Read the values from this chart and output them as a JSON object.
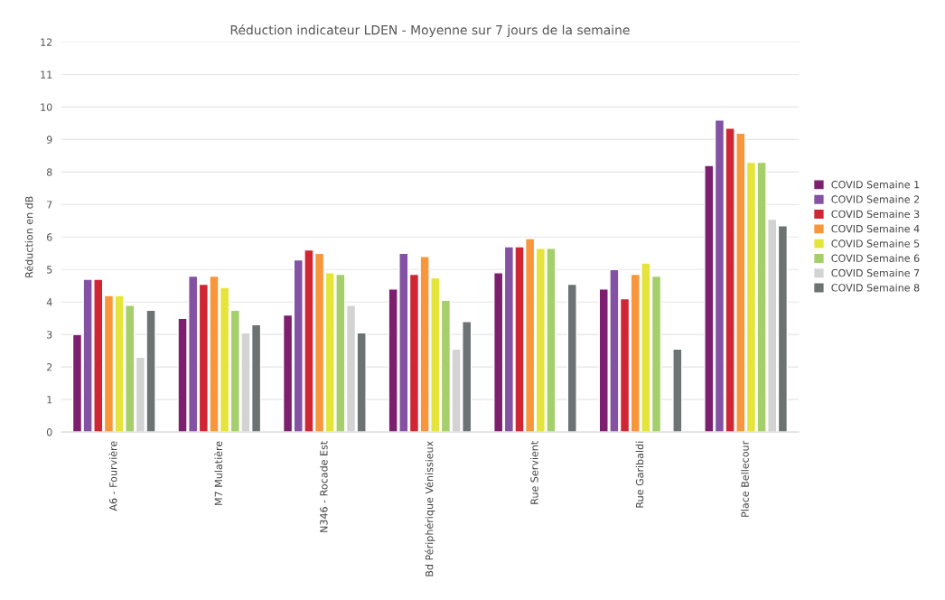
{
  "chart_data": {
    "type": "bar",
    "title": "Réduction indicateur LDEN - Moyenne sur 7 jours de la semaine",
    "ylabel": "Réduction en dB",
    "categories": [
      "A6 - Fourvière",
      "M7 Mulatière",
      "N346 - Rocade Est",
      "Bd Périphérique Vénissieux",
      "Rue Servient",
      "Rue Garibaldi",
      "Place Bellecour"
    ],
    "series": [
      {
        "name": "COVID Semaine 1",
        "color": "#7b1f6e",
        "values": [
          3.0,
          3.5,
          3.6,
          4.4,
          4.9,
          4.4,
          8.2
        ]
      },
      {
        "name": "COVID Semaine 2",
        "color": "#8352a3",
        "values": [
          4.7,
          4.8,
          5.3,
          5.5,
          5.7,
          5.0,
          9.6
        ]
      },
      {
        "name": "COVID Semaine 3",
        "color": "#d02634",
        "values": [
          4.7,
          4.55,
          5.6,
          4.85,
          5.7,
          4.1,
          9.35
        ]
      },
      {
        "name": "COVID Semaine 4",
        "color": "#f7963a",
        "values": [
          4.2,
          4.8,
          5.5,
          5.4,
          5.95,
          4.85,
          9.2
        ]
      },
      {
        "name": "COVID Semaine 5",
        "color": "#e4e43a",
        "values": [
          4.2,
          4.45,
          4.9,
          4.75,
          5.65,
          5.2,
          8.3
        ]
      },
      {
        "name": "COVID Semaine 6",
        "color": "#a5cf6a",
        "values": [
          3.9,
          3.75,
          4.85,
          4.05,
          5.65,
          4.8,
          8.3
        ]
      },
      {
        "name": "COVID Semaine 7",
        "color": "#d3d3d3",
        "values": [
          2.3,
          3.05,
          3.9,
          2.55,
          null,
          null,
          6.55
        ]
      },
      {
        "name": "COVID Semaine 8",
        "color": "#6d7273",
        "values": [
          3.75,
          3.3,
          3.05,
          3.4,
          4.55,
          2.55,
          6.35
        ]
      }
    ],
    "ylim": [
      0,
      12
    ],
    "yticks": [
      0,
      1,
      2,
      3,
      4,
      5,
      6,
      7,
      8,
      9,
      10,
      11,
      12
    ],
    "grid": "y",
    "legend": "right"
  }
}
